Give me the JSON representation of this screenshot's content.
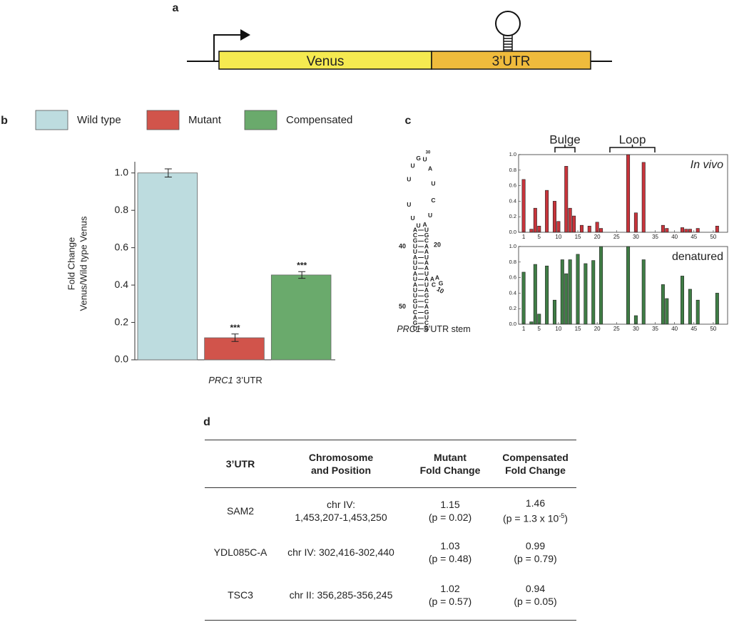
{
  "panel_labels": [
    "a",
    "b",
    "c",
    "d"
  ],
  "construct": {
    "segments": [
      "Venus",
      "3’UTR"
    ],
    "colors": [
      "#f5ea50",
      "#efbb3c"
    ]
  },
  "chart_data": [
    {
      "type": "bar",
      "ylabel": [
        "Fold Change",
        "Venus/Wild type Venus"
      ],
      "xlabel": [
        "PRC1",
        "3’UTR"
      ],
      "categories": [
        "Wild type",
        "Mutant",
        "Compensated"
      ],
      "values": [
        1.0,
        0.118,
        0.454
      ],
      "errors": [
        0.022,
        0.02,
        0.018
      ],
      "significance": [
        null,
        "***",
        "***"
      ],
      "colors": [
        "#bddcdf",
        "#d1544b",
        "#6aaa6c"
      ],
      "ylim": [
        0,
        1.06
      ],
      "yticks": [
        {
          "value": 0,
          "label": "0.0"
        },
        0.2,
        0.4,
        0.6,
        0.8,
        {
          "value": 1,
          "label": "1.0"
        }
      ],
      "legend": "top"
    },
    {
      "type": "bar",
      "annotation": "In vivo",
      "bracket_labels": [
        "Bulge",
        "Loop"
      ],
      "color": "#c8343b",
      "x": [
        1,
        3,
        4,
        5,
        7,
        9,
        10,
        12,
        13,
        14,
        16,
        18,
        20,
        21,
        28,
        30,
        32,
        37,
        38,
        42,
        43,
        44,
        46,
        51
      ],
      "values": [
        0.68,
        0.04,
        0.31,
        0.08,
        0.54,
        0.4,
        0.14,
        0.85,
        0.31,
        0.21,
        0.09,
        0.08,
        0.13,
        0.05,
        1.0,
        0.25,
        0.9,
        0.09,
        0.05,
        0.06,
        0.04,
        0.04,
        0.05,
        0.08
      ],
      "xlim": [
        -0.3,
        53.7
      ],
      "ylim": [
        0,
        1
      ],
      "xticks": [
        1,
        5,
        10,
        15,
        20,
        25,
        30,
        35,
        40,
        45,
        50
      ],
      "yticks": [
        {
          "value": 0,
          "label": "0.0"
        },
        0.2,
        0.4,
        0.6,
        0.8,
        {
          "value": 1,
          "label": "1.0"
        }
      ]
    },
    {
      "type": "bar",
      "annotation": "denatured",
      "color": "#3f7d45",
      "x": [
        1,
        3,
        4,
        5,
        7,
        9,
        11,
        12,
        13,
        15,
        17,
        19,
        21,
        28,
        30,
        32,
        37,
        38,
        42,
        44,
        46,
        51
      ],
      "values": [
        0.67,
        0.03,
        0.77,
        0.13,
        0.75,
        0.31,
        0.83,
        0.65,
        0.83,
        0.9,
        0.78,
        0.82,
        1.0,
        1.0,
        0.11,
        0.83,
        0.51,
        0.33,
        0.62,
        0.45,
        0.31,
        0.4
      ],
      "xlim": [
        -0.3,
        53.7
      ],
      "ylim": [
        0,
        1
      ],
      "xticks": [
        1,
        5,
        10,
        15,
        20,
        25,
        30,
        35,
        40,
        45,
        50
      ],
      "yticks": [
        {
          "value": 0,
          "label": "0.0"
        },
        0.2,
        0.4,
        0.6,
        0.8,
        {
          "value": 1,
          "label": "1.0"
        }
      ]
    }
  ],
  "stem": {
    "loop": [
      "U",
      "U",
      "G",
      "U",
      "A",
      "U",
      "C",
      "U",
      "A",
      "U",
      "U",
      "U"
    ],
    "loop_number": "30",
    "pairs": [
      [
        "A",
        "U"
      ],
      [
        "C",
        "G"
      ],
      [
        "G",
        "C"
      ],
      [
        "U",
        "A"
      ],
      [
        "U",
        "A"
      ],
      [
        "A",
        "U"
      ],
      [
        "U",
        "A"
      ],
      [
        "U",
        "A"
      ],
      [
        "A",
        "U"
      ],
      [
        "U",
        "A"
      ],
      [
        "A",
        "U"
      ],
      [
        "U",
        "A"
      ],
      [
        "U",
        "G"
      ],
      [
        "G",
        "C"
      ],
      [
        "U",
        "A"
      ],
      [
        "C",
        "G"
      ],
      [
        "A",
        "U"
      ],
      [
        "G",
        "C"
      ],
      [
        "U",
        "G"
      ]
    ],
    "bulge": [
      "A",
      "A",
      "G",
      "C"
    ],
    "numbers": [
      "40",
      "20",
      "10",
      "50"
    ],
    "caption": [
      "PRC1",
      "3’UTR stem"
    ]
  },
  "table": {
    "header": [
      [
        "3’UTR"
      ],
      [
        "Chromosome",
        "and Position"
      ],
      [
        "Mutant",
        "Fold Change"
      ],
      [
        "Compensated",
        "Fold Change"
      ]
    ],
    "rows": [
      [
        [
          "SAM2"
        ],
        [
          "chr IV:",
          "1,453,207-1,453,250"
        ],
        [
          "1.15",
          "(p = 0.02)"
        ],
        [
          "1.46",
          {
            "base": "(p = 1.3 x 10",
            "sup": "-5",
            "tail": ")"
          }
        ]
      ],
      [
        [
          "YDL085C-A"
        ],
        [
          "chr IV: 302,416-302,440"
        ],
        [
          "1.03",
          "(p = 0.48)"
        ],
        [
          "0.99",
          "(p = 0.79)"
        ]
      ],
      [
        [
          "TSC3"
        ],
        [
          "chr II: 356,285-356,245"
        ],
        [
          "1.02",
          "(p = 0.57)"
        ],
        [
          "0.94",
          "(p = 0.05)"
        ]
      ]
    ]
  }
}
